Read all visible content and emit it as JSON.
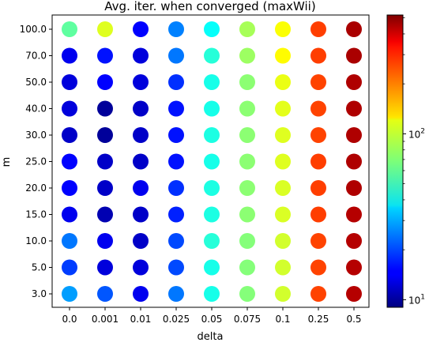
{
  "chart_data": {
    "type": "scatter",
    "title": "Avg. iter. when converged (maxWii)",
    "xlabel": "delta",
    "ylabel": "m",
    "x_categories": [
      "0.0",
      "0.001",
      "0.01",
      "0.025",
      "0.05",
      "0.075",
      "0.1",
      "0.25",
      "0.5"
    ],
    "y_categories": [
      "3.0",
      "5.0",
      "10.0",
      "15.0",
      "20.0",
      "25.0",
      "30.0",
      "40.0",
      "50.0",
      "70.0",
      "100.0"
    ],
    "values": [
      [
        28,
        21,
        14,
        24,
        45,
        70,
        95,
        240,
        420
      ],
      [
        19,
        13,
        13,
        20,
        45,
        70,
        95,
        240,
        420
      ],
      [
        24,
        14,
        12,
        20,
        48,
        70,
        95,
        240,
        420
      ],
      [
        14,
        11,
        12,
        17,
        46,
        72,
        98,
        245,
        420
      ],
      [
        15,
        12,
        14,
        18,
        46,
        72,
        98,
        245,
        430
      ],
      [
        15,
        12,
        12,
        16,
        45,
        72,
        100,
        245,
        430
      ],
      [
        12,
        10,
        12,
        16,
        46,
        72,
        100,
        240,
        430
      ],
      [
        13,
        10,
        12,
        16,
        45,
        72,
        102,
        240,
        430
      ],
      [
        13,
        15,
        13,
        18,
        45,
        72,
        105,
        240,
        430
      ],
      [
        14,
        16,
        13,
        24,
        48,
        77,
        115,
        245,
        440
      ],
      [
        60,
        100,
        15,
        25,
        42,
        80,
        112,
        245,
        440
      ]
    ],
    "colorbar": {
      "scale": "log",
      "range": [
        9,
        520
      ],
      "colormap": "jet",
      "ticks": [
        {
          "value": 10,
          "base": "10",
          "exp": "1"
        },
        {
          "value": 100,
          "base": "10",
          "exp": "2"
        }
      ]
    }
  }
}
